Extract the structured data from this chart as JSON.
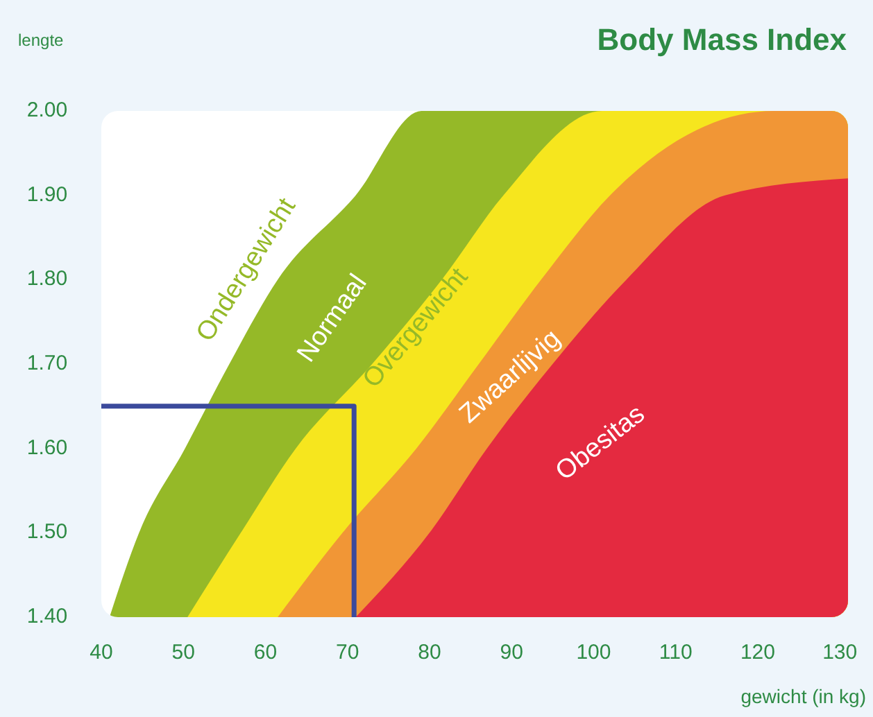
{
  "chart_data": {
    "type": "area",
    "title": "Body Mass Index",
    "xlabel": "gewicht (in kg)",
    "ylabel": "lengte",
    "xlim": [
      40,
      131
    ],
    "ylim": [
      1.4,
      2.0
    ],
    "xticks": [
      40,
      50,
      60,
      70,
      80,
      90,
      100,
      110,
      120,
      130
    ],
    "yticks": [
      {
        "value": 1.4,
        "label": "1.40"
      },
      {
        "value": 1.5,
        "label": "1.50"
      },
      {
        "value": 1.6,
        "label": "1.60"
      },
      {
        "value": 1.7,
        "label": "1.70"
      },
      {
        "value": 1.8,
        "label": "1.80"
      },
      {
        "value": 1.9,
        "label": "1.90"
      },
      {
        "value": 2.0,
        "label": "2.00"
      }
    ],
    "series": [
      {
        "color": "#95b928",
        "x": [
          41,
          44.6,
          50.2,
          55.6,
          61.5,
          71,
          79,
          131
        ],
        "values": [
          1.4,
          1.5,
          1.6,
          1.7,
          1.8,
          1.9,
          2.0,
          2.0
        ]
      },
      {
        "color": "#f6e61e",
        "x": [
          50.5,
          57,
          63.7,
          73,
          81.5,
          89,
          101,
          131
        ],
        "values": [
          1.4,
          1.5,
          1.6,
          1.7,
          1.8,
          1.9,
          2.0,
          2.0
        ]
      },
      {
        "color": "#f19636",
        "x": [
          61.5,
          69.4,
          78.4,
          86,
          93.6,
          102,
          122,
          131
        ],
        "values": [
          1.4,
          1.5,
          1.6,
          1.7,
          1.8,
          1.9,
          2.0,
          2.0
        ]
      },
      {
        "color": "#e42a40",
        "x": [
          71,
          80,
          87,
          95,
          104,
          116,
          131
        ],
        "values": [
          1.4,
          1.5,
          1.6,
          1.7,
          1.8,
          1.9,
          1.92
        ]
      },
      {
        "type": "line",
        "color": "#3b4a9c",
        "marker": "none",
        "line_style": "solid",
        "x": [
          40,
          70.8,
          70.8
        ],
        "values": [
          1.65,
          1.65,
          1.4
        ]
      }
    ],
    "annotations": [
      "Ondergewicht",
      "Normaal",
      "Overgewicht",
      "Zwaarlijvig",
      "Obesitas"
    ]
  }
}
